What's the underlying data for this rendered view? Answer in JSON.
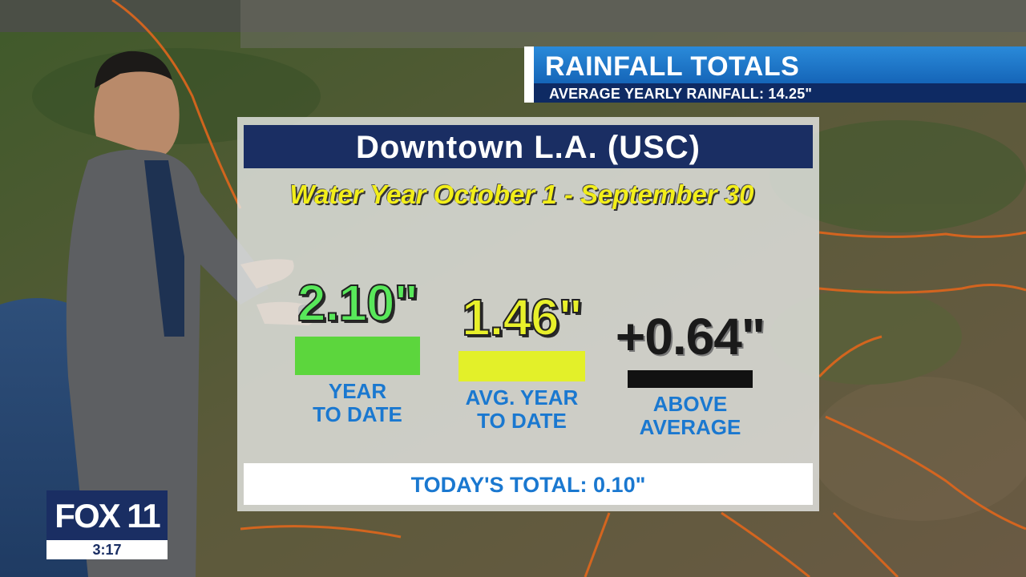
{
  "header": {
    "title": "RAINFALL TOTALS",
    "subtitle": "AVERAGE YEARLY RAINFALL: 14.25\""
  },
  "board": {
    "location": "Downtown L.A. (USC)",
    "water_year": "Water Year October 1 - September 30",
    "stats": [
      {
        "value": "2.10\"",
        "label_line1": "YEAR",
        "label_line2": "TO DATE",
        "color": "#58e85a"
      },
      {
        "value": "1.46\"",
        "label_line1": "AVG. YEAR",
        "label_line2": "TO DATE",
        "color": "#e8f02a"
      },
      {
        "value": "+0.64\"",
        "label_line1": "ABOVE",
        "label_line2": "AVERAGE",
        "color": "#111111"
      }
    ],
    "today_total": "TODAY'S TOTAL: 0.10\""
  },
  "bug": {
    "logo": "FOX 11",
    "time": "3:17"
  },
  "colors": {
    "header_blue": "#1e78cc",
    "navy": "#1a2e63",
    "label_blue": "#1a78d0",
    "water_year_yellow": "#f2ee1a"
  }
}
